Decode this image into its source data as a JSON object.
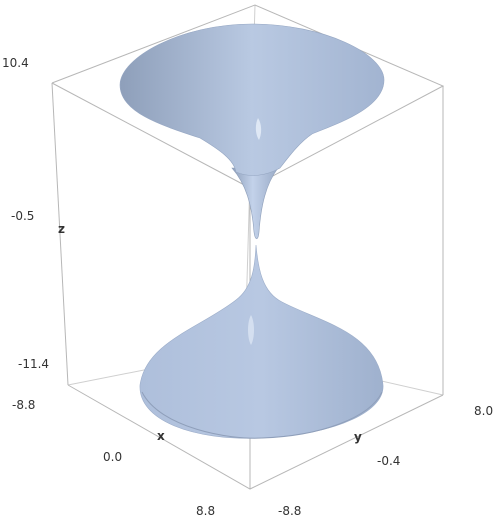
{
  "chart_data": {
    "type": "surface3d",
    "surface": "hyperboloid",
    "surface_color": "#a9bcda",
    "axes": {
      "x": {
        "label": "x",
        "ticks": [
          "-8.8",
          "0.0",
          "8.8"
        ]
      },
      "y": {
        "label": "y",
        "ticks": [
          "8.0",
          "-0.4",
          "-8.8"
        ]
      },
      "z": {
        "label": "z",
        "ticks": [
          "10.4",
          "-0.5",
          "-11.4"
        ]
      }
    }
  }
}
